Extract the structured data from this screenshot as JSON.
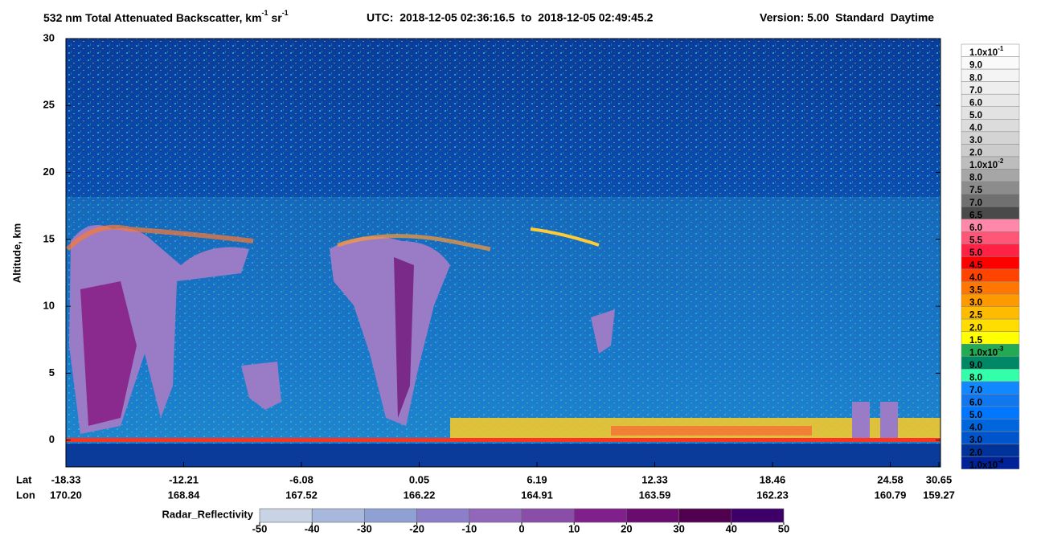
{
  "chart_data": {
    "type": "heatmap",
    "title": {
      "text": "532 nm Total Attenuated Backscatter, km",
      "sup1": "-1",
      "unit2": " sr",
      "sup2": "-1"
    },
    "utc": "UTC:  2018-12-05 02:36:16.5  to  2018-12-05 02:49:45.2",
    "version": "Version: 5.00  Standard  Daytime",
    "ylabel": "Altitude, km",
    "ylim": [
      -2,
      30
    ],
    "yticks": [
      0,
      5,
      10,
      15,
      20,
      25,
      30
    ],
    "x_axis": {
      "lat_label": "Lat",
      "lon_label": "Lon",
      "lat": [
        "-18.33",
        "-12.21",
        "-6.08",
        "0.05",
        "6.19",
        "12.33",
        "18.46",
        "24.58",
        "30.65"
      ],
      "lon": [
        "170.20",
        "168.84",
        "167.52",
        "166.22",
        "164.91",
        "163.59",
        "162.23",
        "160.79",
        "159.27"
      ]
    },
    "colorbar": [
      {
        "label": "1.0x10",
        "sup": "-1",
        "color": "#ffffff"
      },
      {
        "label": "9.0",
        "color": "#fafafa"
      },
      {
        "label": "8.0",
        "color": "#f4f4f4"
      },
      {
        "label": "7.0",
        "color": "#eeeeee"
      },
      {
        "label": "6.0",
        "color": "#e8e8e8"
      },
      {
        "label": "5.0",
        "color": "#e2e2e2"
      },
      {
        "label": "4.0",
        "color": "#dcdcdc"
      },
      {
        "label": "3.0",
        "color": "#d4d4d4"
      },
      {
        "label": "2.0",
        "color": "#cccccc"
      },
      {
        "label": "1.0x10",
        "sup": "-2",
        "color": "#bdbdbd"
      },
      {
        "label": "8.0",
        "color": "#a6a6a6"
      },
      {
        "label": "7.5",
        "color": "#8c8c8c"
      },
      {
        "label": "7.0",
        "color": "#707070"
      },
      {
        "label": "6.5",
        "color": "#4a4a4a"
      },
      {
        "label": "6.0",
        "color": "#ff88aa"
      },
      {
        "label": "5.5",
        "color": "#ff5577"
      },
      {
        "label": "5.0",
        "color": "#ff2244"
      },
      {
        "label": "4.5",
        "color": "#ff0000"
      },
      {
        "label": "4.0",
        "color": "#ff4400"
      },
      {
        "label": "3.5",
        "color": "#ff7700"
      },
      {
        "label": "3.0",
        "color": "#ff9900"
      },
      {
        "label": "2.5",
        "color": "#ffbb00"
      },
      {
        "label": "2.0",
        "color": "#ffdd00"
      },
      {
        "label": "1.5",
        "color": "#ffff00"
      },
      {
        "label": "1.0x10",
        "sup": "-3",
        "color": "#22aa55"
      },
      {
        "label": "9.0",
        "color": "#008866"
      },
      {
        "label": "8.0",
        "color": "#33ffaa"
      },
      {
        "label": "7.0",
        "color": "#1188ff"
      },
      {
        "label": "6.0",
        "color": "#1177ee"
      },
      {
        "label": "5.0",
        "color": "#0077ff"
      },
      {
        "label": "4.0",
        "color": "#0066dd"
      },
      {
        "label": "3.0",
        "color": "#0055cc"
      },
      {
        "label": "2.0",
        "color": "#003399"
      },
      {
        "label": "1.0x10",
        "sup": "-4",
        "color": "#002299"
      }
    ],
    "radar": {
      "label": "Radar_Reflectivity",
      "ticks": [
        -50,
        -40,
        -30,
        -20,
        -10,
        0,
        10,
        20,
        30,
        40,
        50
      ],
      "colors": [
        "#c8d4e6",
        "#a8b8dc",
        "#8fa0d2",
        "#8c7ec8",
        "#9266b8",
        "#8a4ea8",
        "#80208a",
        "#6a0c6e",
        "#50004e",
        "#3e0068"
      ]
    }
  }
}
